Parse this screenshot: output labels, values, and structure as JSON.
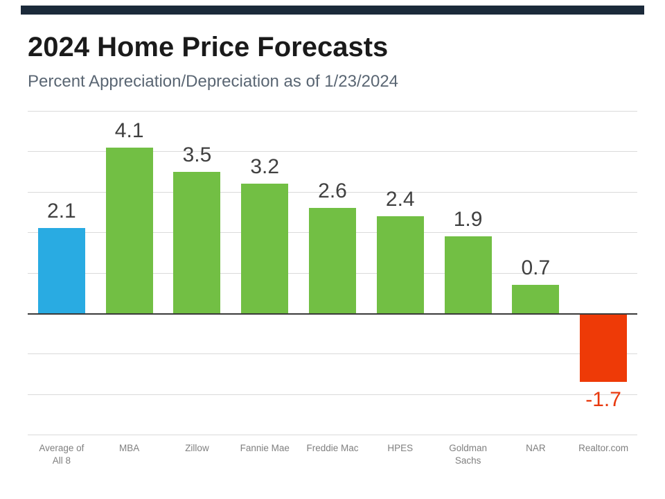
{
  "page": {
    "background": "#ffffff",
    "top_strip_color": "#1b2a3a"
  },
  "header": {
    "title": "2024 Home Price Forecasts",
    "subtitle": "Percent Appreciation/Depreciation as of 1/23/2024"
  },
  "chart_data": {
    "type": "bar",
    "title": "2024 Home Price Forecasts",
    "subtitle": "Percent Appreciation/Depreciation as of 1/23/2024",
    "categories": [
      "Average of All 8",
      "MBA",
      "Zillow",
      "Fannie Mae",
      "Freddie Mac",
      "HPES",
      "Goldman Sachs",
      "NAR",
      "Realtor.com"
    ],
    "values": [
      2.1,
      4.1,
      3.5,
      3.2,
      2.6,
      2.4,
      1.9,
      0.7,
      -1.7
    ],
    "value_labels": [
      "2.1",
      "4.1",
      "3.5",
      "3.2",
      "2.6",
      "2.4",
      "1.9",
      "0.7",
      "-1.7"
    ],
    "bar_colors": [
      "#29abe2",
      "#72bf44",
      "#72bf44",
      "#72bf44",
      "#72bf44",
      "#72bf44",
      "#72bf44",
      "#72bf44",
      "#ee3a07"
    ],
    "value_label_color": "#404040",
    "negative_value_label_color": "#e8380d",
    "ylim": [
      -3,
      5
    ],
    "gridline_step": 1,
    "grid": true,
    "gridline_color": "#dadada",
    "zero_line_color": "#3a3a3a",
    "x_label_color": "#7f7f7f",
    "legend": "none"
  }
}
